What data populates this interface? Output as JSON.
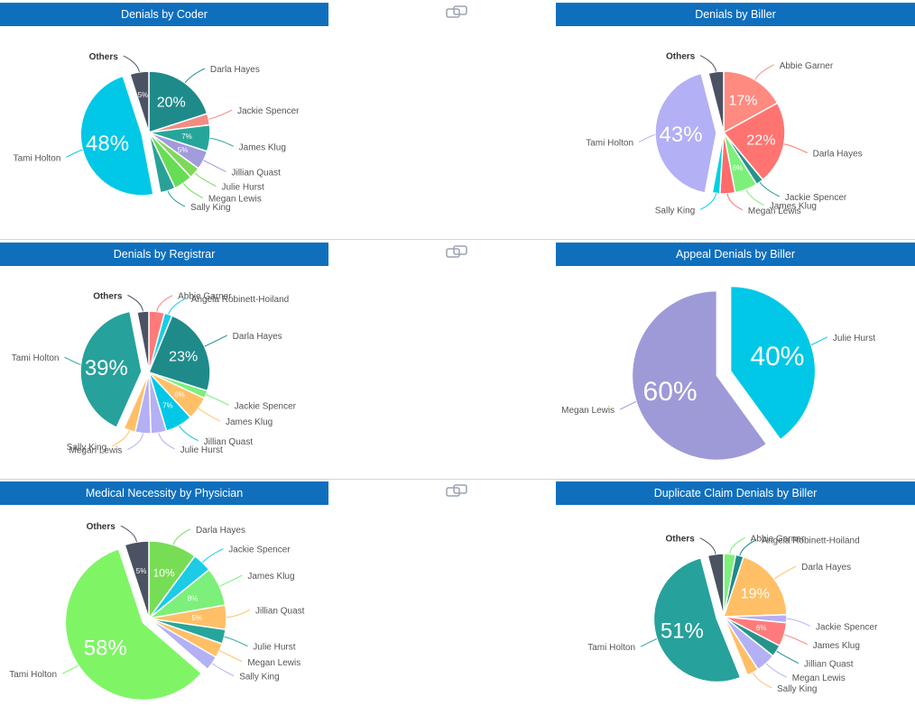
{
  "link_icon": "link-icon",
  "chart_data": [
    {
      "type": "pie",
      "title": "Denials by Coder",
      "slices": [
        {
          "name": "Darla Hayes",
          "value": 20,
          "label": "20%",
          "color": "#1f8a8a"
        },
        {
          "name": "Jackie Spencer",
          "value": 3,
          "label": "",
          "color": "#f28b82"
        },
        {
          "name": "James Klug",
          "value": 7,
          "label": "7%",
          "color": "#26a69a"
        },
        {
          "name": "Jillian Quast",
          "value": 5,
          "label": "5%",
          "color": "#a29bdc"
        },
        {
          "name": "Julie Hurst",
          "value": 3,
          "label": "",
          "color": "#7ed957"
        },
        {
          "name": "Megan Lewis",
          "value": 5,
          "label": "",
          "color": "#66dd55"
        },
        {
          "name": "Sally King",
          "value": 4,
          "label": "",
          "color": "#2aa198"
        },
        {
          "name": "Tami Holton",
          "value": 48,
          "label": "48%",
          "color": "#00c8e6"
        },
        {
          "name": "Others",
          "value": 5,
          "label": "5%",
          "color": "#4b5363"
        }
      ]
    },
    {
      "type": "pie",
      "title": "Denials by Biller",
      "slices": [
        {
          "name": "Abbie Garner",
          "value": 17,
          "label": "17%",
          "color": "#ff8a80"
        },
        {
          "name": "Darla Hayes",
          "value": 22,
          "label": "22%",
          "color": "#ff7470"
        },
        {
          "name": "Jackie Spencer",
          "value": 2,
          "label": "",
          "color": "#26948c"
        },
        {
          "name": "James Klug",
          "value": 6,
          "label": "6%",
          "color": "#7cf07a"
        },
        {
          "name": "Megan Lewis",
          "value": 4,
          "label": "",
          "color": "#ff6b6b"
        },
        {
          "name": "Sally King",
          "value": 2,
          "label": "",
          "color": "#00d0e0"
        },
        {
          "name": "Tami Holton",
          "value": 43,
          "label": "43%",
          "color": "#b3b0f5"
        },
        {
          "name": "Others",
          "value": 4,
          "label": "",
          "color": "#4b5363"
        }
      ]
    },
    {
      "type": "pie",
      "title": "Denials by Registrar",
      "slices": [
        {
          "name": "Abbie Garner",
          "value": 4,
          "label": "",
          "color": "#ff7b7b"
        },
        {
          "name": "Angela Robinett-Hoiland",
          "value": 2,
          "label": "",
          "color": "#1ccbe6"
        },
        {
          "name": "Darla Hayes",
          "value": 23,
          "label": "23%",
          "color": "#1f8a8a"
        },
        {
          "name": "Jackie Spencer",
          "value": 2,
          "label": "",
          "color": "#7cf07a"
        },
        {
          "name": "James Klug",
          "value": 6,
          "label": "6%",
          "color": "#ffbf66"
        },
        {
          "name": "Jillian Quast",
          "value": 7,
          "label": "7%",
          "color": "#00c8e6"
        },
        {
          "name": "Julie Hurst",
          "value": 4,
          "label": "",
          "color": "#b3b0f5"
        },
        {
          "name": "Megan Lewis",
          "value": 4,
          "label": "",
          "color": "#b3b0f5"
        },
        {
          "name": "Sally King",
          "value": 3,
          "label": "",
          "color": "#ffbf66"
        },
        {
          "name": "Tami Holton",
          "value": 39,
          "label": "39%",
          "color": "#27a19b"
        },
        {
          "name": "Others",
          "value": 3,
          "label": "",
          "color": "#4b5363"
        }
      ]
    },
    {
      "type": "pie",
      "title": "Appeal Denials by Biller",
      "slices": [
        {
          "name": "Julie Hurst",
          "value": 40,
          "label": "40%",
          "color": "#00c8e6"
        },
        {
          "name": "Megan Lewis",
          "value": 60,
          "label": "60%",
          "color": "#9e9ad8"
        }
      ]
    },
    {
      "type": "pie",
      "title": "Medical Necessity by Physician",
      "slices": [
        {
          "name": "Darla Hayes",
          "value": 10,
          "label": "10%",
          "color": "#77dd55"
        },
        {
          "name": "Jackie Spencer",
          "value": 4,
          "label": "",
          "color": "#1ccbe6"
        },
        {
          "name": "James Klug",
          "value": 8,
          "label": "8%",
          "color": "#7cf07a"
        },
        {
          "name": "Jillian Quast",
          "value": 5,
          "label": "5%",
          "color": "#ffbf66"
        },
        {
          "name": "Julie Hurst",
          "value": 3,
          "label": "",
          "color": "#26a69a"
        },
        {
          "name": "Megan Lewis",
          "value": 3,
          "label": "",
          "color": "#ffbf66"
        },
        {
          "name": "Sally King",
          "value": 3,
          "label": "",
          "color": "#b3b0f5"
        },
        {
          "name": "Tami Holton",
          "value": 58,
          "label": "58%",
          "color": "#7ff566"
        },
        {
          "name": "Others",
          "value": 5,
          "label": "5%",
          "color": "#4b5363"
        }
      ]
    },
    {
      "type": "pie",
      "title": "Duplicate Claim Denials by Biller",
      "slices": [
        {
          "name": "Abbie Garner",
          "value": 3,
          "label": "",
          "color": "#7cf07a"
        },
        {
          "name": "Angela Robinett-Hoiland",
          "value": 2,
          "label": "",
          "color": "#1f8a8a"
        },
        {
          "name": "Darla Hayes",
          "value": 19,
          "label": "19%",
          "color": "#ffbf66"
        },
        {
          "name": "Jackie Spencer",
          "value": 2,
          "label": "",
          "color": "#b3b0f5"
        },
        {
          "name": "James Klug",
          "value": 6,
          "label": "6%",
          "color": "#ff7b7b"
        },
        {
          "name": "Jillian Quast",
          "value": 3,
          "label": "",
          "color": "#26948c"
        },
        {
          "name": "Megan Lewis",
          "value": 5,
          "label": "",
          "color": "#b3b0f5"
        },
        {
          "name": "Sally King",
          "value": 3,
          "label": "",
          "color": "#ffbf66"
        },
        {
          "name": "Tami Holton",
          "value": 51,
          "label": "51%",
          "color": "#27a19b"
        },
        {
          "name": "Others",
          "value": 4,
          "label": "",
          "color": "#4b5363"
        }
      ]
    }
  ]
}
